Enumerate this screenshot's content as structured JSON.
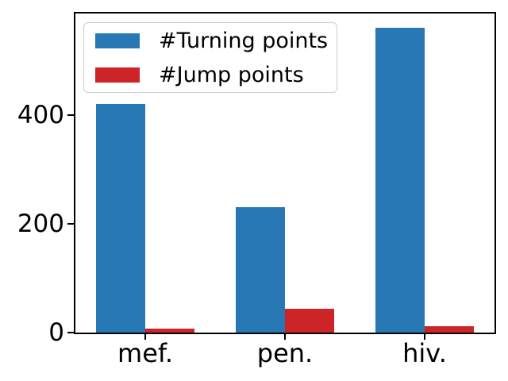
{
  "figure": {
    "background": "#ffffff",
    "axis_color": "#000000",
    "legend_border_color": "#cccccc"
  },
  "chart_data": {
    "type": "bar",
    "title": "",
    "xlabel": "",
    "ylabel": "",
    "categories": [
      "mef.",
      "pen.",
      "hiv."
    ],
    "series": [
      {
        "name": "#Turning points",
        "color": "#2878b5",
        "values": [
          420,
          230,
          560
        ]
      },
      {
        "name": "#Jump points",
        "color": "#cd2428",
        "values": [
          8,
          44,
          12
        ]
      }
    ],
    "yticks": [
      0,
      200,
      400
    ],
    "ylim": [
      0,
      587
    ],
    "grid": false,
    "legend_position": "upper left",
    "bar_width_ratio": 0.35
  }
}
